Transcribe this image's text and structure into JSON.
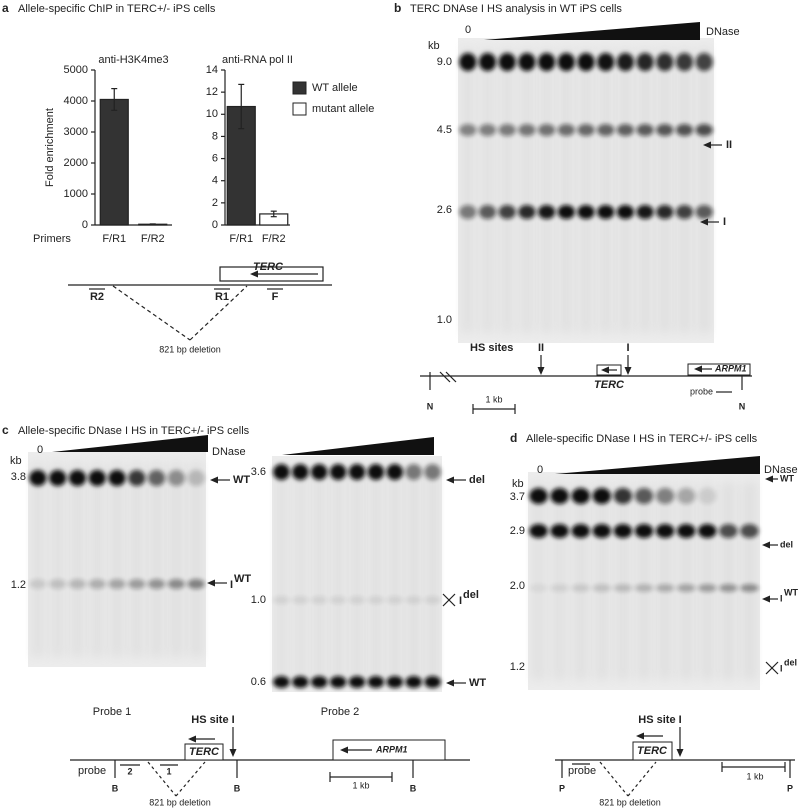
{
  "chart_data": [
    {
      "type": "bar",
      "title": "anti-H3K4me3",
      "y_label": "Fold enrichment",
      "x_label": "Primers",
      "categories": [
        "F/R1",
        "F/R2"
      ],
      "series": [
        {
          "color": "#333333",
          "values": [
            4050,
            null
          ],
          "errors": [
            350,
            null
          ]
        },
        {
          "color": "#333333",
          "values": [
            null,
            25
          ],
          "errors": [
            null,
            10
          ]
        }
      ],
      "ylim": [
        0,
        5000
      ],
      "yticks": [
        0,
        1000,
        2000,
        3000,
        4000,
        5000
      ]
    },
    {
      "type": "bar",
      "title": "anti-RNA pol II",
      "categories": [
        "F/R1",
        "F/R2"
      ],
      "series": [
        {
          "name": "WT allele",
          "color": "#333333",
          "values": [
            10.7,
            null
          ],
          "errors": [
            2.0,
            null
          ]
        },
        {
          "name": "mutant allele",
          "color": "#ffffff",
          "values": [
            null,
            1.0
          ],
          "errors": [
            null,
            0.25
          ]
        }
      ],
      "ylim": [
        0,
        14
      ],
      "yticks": [
        0,
        2,
        4,
        6,
        8,
        10,
        12,
        14
      ]
    }
  ],
  "panels": {
    "a": {
      "label": "a",
      "title": "Allele-specific ChIP in TERC+/- iPS cells",
      "map": {
        "gene": "TERC",
        "primers": [
          "R2",
          "R1",
          "F"
        ],
        "deletion": "821 bp deletion"
      }
    },
    "b": {
      "label": "b",
      "title": "TERC DNAse I HS analysis in WT iPS cells",
      "zero": "0",
      "dnase": "DNase",
      "kb": "kb",
      "sizes": [
        "9.0",
        "4.5",
        "2.6",
        "1.0"
      ],
      "bands": [
        "II",
        "I"
      ],
      "map": {
        "hs_sites": "HS sites",
        "sites": [
          "II",
          "I"
        ],
        "gene": "TERC",
        "neighbor": "ARPM1",
        "probe": "probe",
        "scale": "1 kb",
        "ends": [
          "N",
          "N"
        ]
      }
    },
    "c": {
      "label": "c",
      "title": "Allele-specific DNase I HS in TERC+/- iPS cells",
      "zero": "0",
      "dnase": "DNase",
      "kb": "kb",
      "gel1": {
        "sizes": [
          "3.8",
          "1.2"
        ],
        "bands": [
          {
            "text": "WT"
          },
          {
            "text": "I",
            "sup": "WT"
          }
        ],
        "caption": "Probe 1"
      },
      "gel2": {
        "sizes": [
          "3.6",
          "1.0",
          "0.6"
        ],
        "bands": [
          {
            "text": "del"
          },
          {
            "text": "I",
            "sup": "del"
          },
          {
            "text": "WT"
          }
        ],
        "caption": "Probe 2"
      },
      "map": {
        "hs_site": "HS site I",
        "gene": "TERC",
        "neighbor": "ARPM1",
        "probe": "probe",
        "probes": [
          "2",
          "1"
        ],
        "ends": [
          "B",
          "B",
          "B"
        ],
        "scale": "1 kb",
        "deletion": "821 bp deletion"
      }
    },
    "d": {
      "label": "d",
      "title": "Allele-specific DNase I HS in TERC+/- iPS cells",
      "zero": "0",
      "dnase": "DNase",
      "kb": "kb",
      "sizes": [
        "3.7",
        "2.9",
        "2.0",
        "1.2"
      ],
      "bands": [
        {
          "text": "WT"
        },
        {
          "text": "del"
        },
        {
          "text": "I",
          "sup": "WT"
        },
        {
          "text": "I",
          "sup": "del"
        }
      ],
      "map": {
        "hs_site": "HS site I",
        "gene": "TERC",
        "probe": "probe",
        "ends": [
          "P",
          "P"
        ],
        "scale": "1 kb",
        "deletion": "821 bp deletion"
      }
    }
  }
}
